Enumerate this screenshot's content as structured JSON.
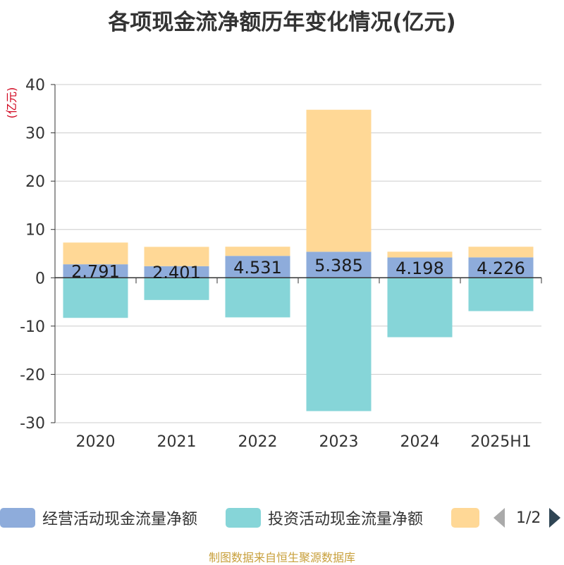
{
  "title": "各项现金流净额历年变化情况(亿元)",
  "source": "制图数据来自恒生聚源数据库",
  "legend": {
    "items": [
      {
        "label": "经营活动现金流量净额",
        "color": "#8eacdb"
      },
      {
        "label": "投资活动现金流量净额",
        "color": "#86d5d8"
      },
      {
        "label": "",
        "color": "#ffd896"
      }
    ],
    "page": "1/2"
  },
  "chart_data": {
    "type": "bar",
    "stacked": true,
    "ylabel": "(亿元)",
    "ylim": [
      -30,
      40
    ],
    "yticks": [
      -30,
      -20,
      -10,
      0,
      10,
      20,
      30,
      40
    ],
    "grid": true,
    "categories": [
      "2020",
      "2021",
      "2022",
      "2023",
      "2024",
      "2025H1"
    ],
    "series": [
      {
        "name": "经营活动现金流量净额",
        "color": "#8eacdb",
        "values": [
          2.791,
          2.401,
          4.531,
          5.385,
          4.198,
          4.226
        ],
        "labels": [
          "2.791",
          "2.401",
          "4.531",
          "5.385",
          "4.198",
          "4.226"
        ]
      },
      {
        "name": "投资活动现金流量净额",
        "color": "#86d5d8",
        "values": [
          -8.3,
          -4.6,
          -8.2,
          -27.6,
          -12.3,
          -6.9
        ]
      },
      {
        "color": "#ffd896",
        "values": [
          4.5,
          4.0,
          1.9,
          29.4,
          1.2,
          2.2
        ]
      }
    ]
  }
}
